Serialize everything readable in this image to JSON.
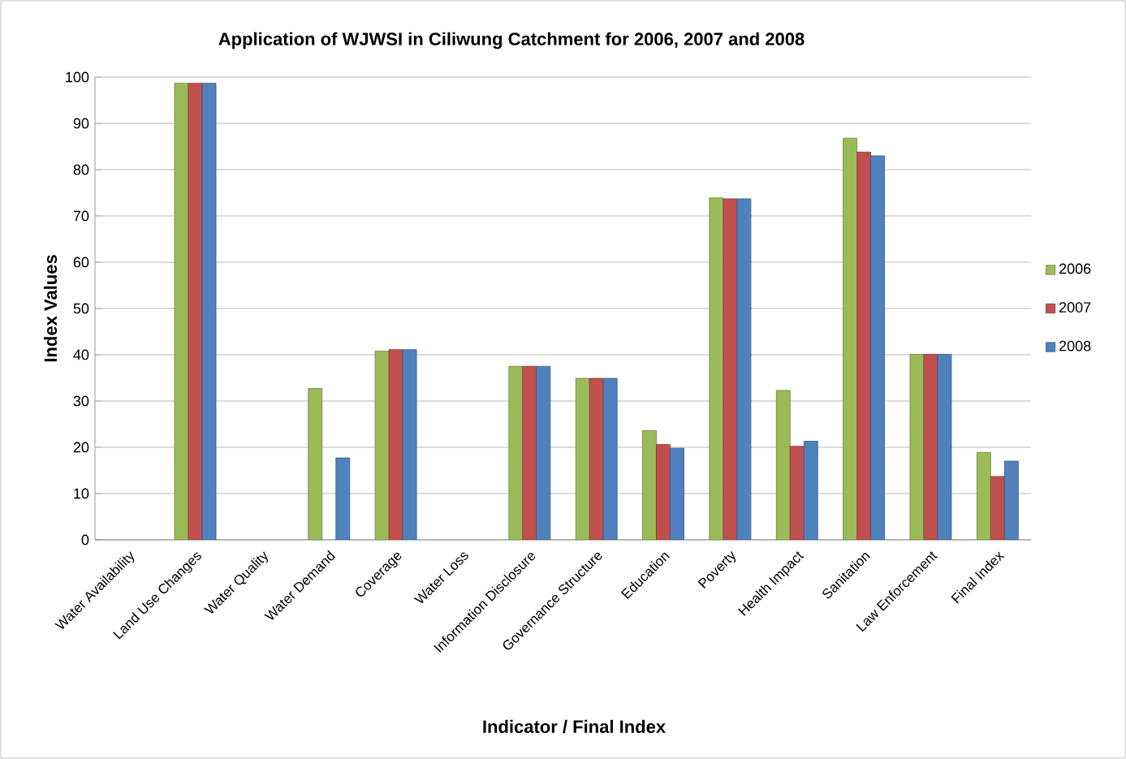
{
  "chart_data": {
    "type": "bar",
    "title": "Application of WJWSI in Ciliwung Catchment for 2006, 2007 and 2008",
    "xlabel": "Indicator / Final Index",
    "ylabel": "Index Values",
    "categories": [
      "Water Availability",
      "Land Use Changes",
      "Water Quality",
      "Water Demand",
      "Coverage",
      "Water Loss",
      "Information Disclosure",
      "Governance Structure",
      "Education",
      "Poverty",
      "Health Impact",
      "Sanitation",
      "Law Enforcement",
      "Final Index"
    ],
    "series": [
      {
        "name": "2006",
        "color": "#9bbb59",
        "values": [
          null,
          98.7,
          null,
          32.7,
          40.8,
          null,
          37.5,
          34.9,
          23.6,
          73.9,
          32.3,
          86.8,
          40.1,
          18.9
        ]
      },
      {
        "name": "2007",
        "color": "#c0504d",
        "values": [
          null,
          98.7,
          null,
          null,
          41.1,
          null,
          37.5,
          34.9,
          20.6,
          73.7,
          20.2,
          83.8,
          40.1,
          13.7
        ]
      },
      {
        "name": "2008",
        "color": "#4f81bd",
        "values": [
          null,
          98.7,
          null,
          17.7,
          41.1,
          null,
          37.5,
          34.9,
          19.8,
          73.7,
          21.3,
          83.0,
          40.1,
          17.0
        ]
      }
    ],
    "ylim": [
      0,
      100
    ],
    "yticks": [
      0,
      10,
      20,
      30,
      40,
      50,
      60,
      70,
      80,
      90,
      100
    ],
    "grid": "y",
    "legend": "right"
  }
}
